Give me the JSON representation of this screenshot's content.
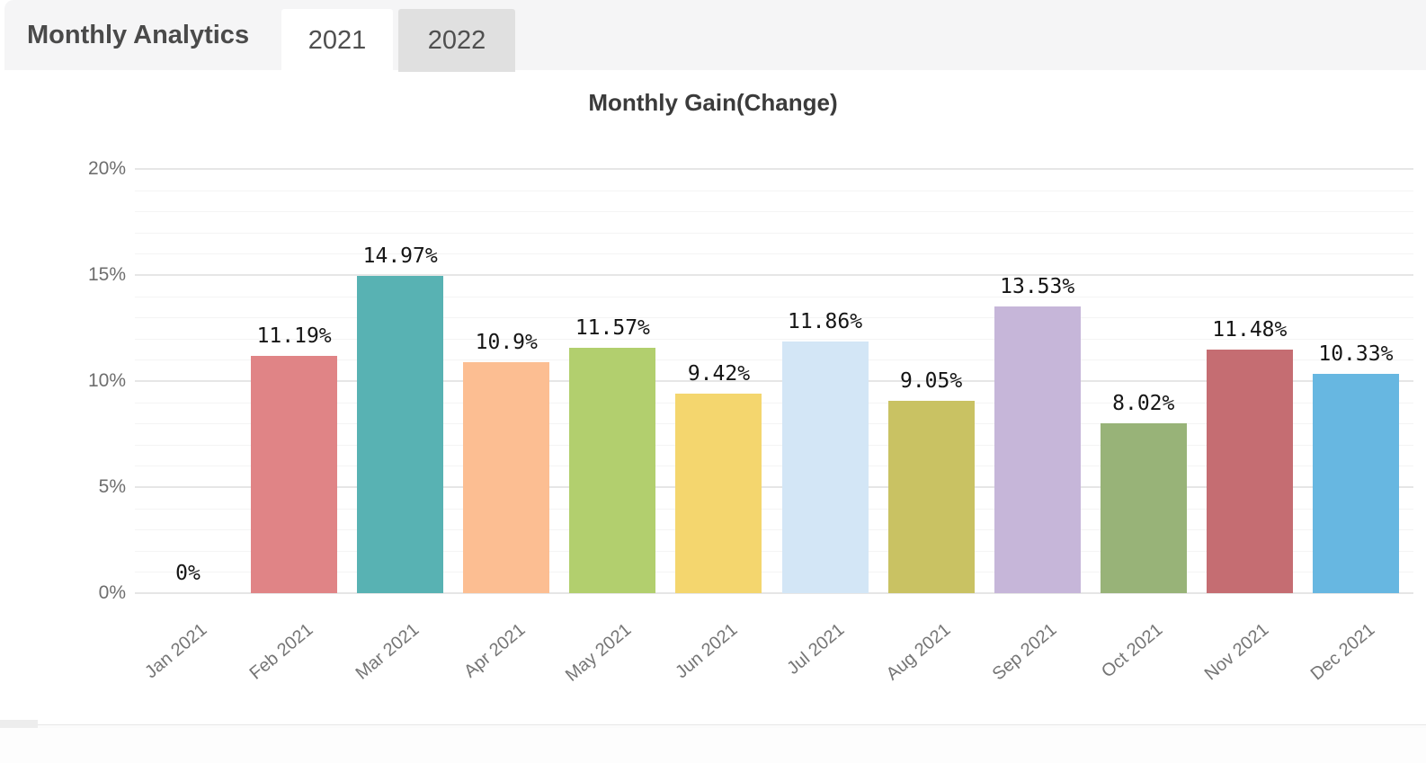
{
  "header": {
    "title": "Monthly Analytics",
    "tabs": [
      {
        "label": "2021",
        "active": true
      },
      {
        "label": "2022",
        "active": false
      }
    ]
  },
  "chart_data": {
    "type": "bar",
    "title": "Monthly Gain(Change)",
    "categories": [
      "Jan 2021",
      "Feb 2021",
      "Mar 2021",
      "Apr 2021",
      "May 2021",
      "Jun 2021",
      "Jul 2021",
      "Aug 2021",
      "Sep 2021",
      "Oct 2021",
      "Nov 2021",
      "Dec 2021"
    ],
    "values": [
      0,
      11.19,
      14.97,
      10.9,
      11.57,
      9.42,
      11.86,
      9.05,
      13.53,
      8.02,
      11.48,
      10.33
    ],
    "value_labels": [
      "0%",
      "11.19%",
      "14.97%",
      "10.9%",
      "11.57%",
      "9.42%",
      "11.86%",
      "9.05%",
      "13.53%",
      "8.02%",
      "11.48%",
      "10.33%"
    ],
    "bar_colors": [
      null,
      "#e08486",
      "#58b2b3",
      "#fcbe92",
      "#b2cf6e",
      "#f4d66e",
      "#d3e6f6",
      "#c9c263",
      "#c6b6d9",
      "#98b378",
      "#c56d72",
      "#67b7e1"
    ],
    "ylim": [
      0,
      20
    ],
    "y_tick_step": 5,
    "y_minor_step": 1,
    "y_ticks": [
      "0%",
      "5%",
      "10%",
      "15%",
      "20%"
    ],
    "grid": true,
    "legend": "none",
    "xlabel": "",
    "ylabel": ""
  },
  "theme": {
    "header_bg": "#f5f5f6",
    "tab_active_bg": "#ffffff",
    "tab_inactive_bg": "#e0e0e0",
    "header_text": "#4a4a4a",
    "chart_title_text": "#3b3b3b",
    "axis_text": "#6e6e6e",
    "value_label_text": "#151515",
    "grid_major": "#e6e6e6",
    "grid_minor": "#f4f4f4"
  }
}
